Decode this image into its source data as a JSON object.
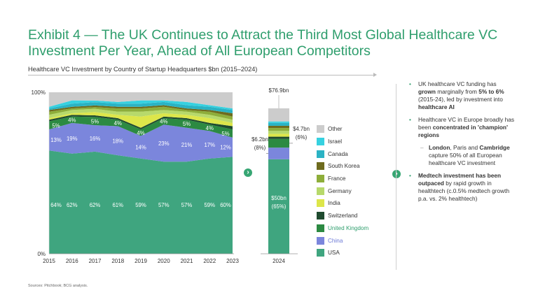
{
  "header": {
    "title_line1": "Exhibit 4 — The UK Continues to Attract the Third Most Global Healthcare VC",
    "title_line2": "Investment Per Year, Ahead of All European Competitors",
    "subtitle": "Healthcare VC Investment by Country of Startup Headquarters $bn (2015–2024)"
  },
  "source": "Sources: Pitchbook; BCG analysis.",
  "chart_data": [
    {
      "type": "area",
      "stacked": true,
      "percent": true,
      "x": [
        "2015",
        "2016",
        "2017",
        "2018",
        "2019",
        "2020",
        "2021",
        "2022",
        "2023"
      ],
      "ylim": [
        0,
        100
      ],
      "y_ticks": [
        "0%",
        "100%"
      ],
      "series": [
        {
          "name": "USA",
          "values": [
            64,
            62,
            62,
            61,
            59,
            57,
            57,
            59,
            60
          ],
          "color": "#3fa57f",
          "label_color": "#ffffff"
        },
        {
          "name": "China",
          "values": [
            13,
            19,
            16,
            18,
            14,
            23,
            21,
            17,
            12
          ],
          "color": "#7b86dc",
          "label_color": "#ffffff"
        },
        {
          "name": "United Kingdom",
          "values": [
            5,
            4,
            5,
            4,
            4,
            4,
            5,
            4,
            5
          ],
          "color": "#2c8a42",
          "label_color": "#ffffff"
        },
        {
          "name": "Switzerland",
          "values": [
            1,
            1,
            1,
            1,
            1,
            1,
            1,
            1,
            2
          ],
          "color": "#1f4b2f"
        },
        {
          "name": "India",
          "values": [
            1,
            1,
            2,
            2,
            7,
            2,
            2,
            3,
            2
          ],
          "color": "#dde64a"
        },
        {
          "name": "Germany",
          "values": [
            2,
            2,
            2,
            2,
            3,
            2,
            2,
            2,
            2
          ],
          "color": "#b7d96b"
        },
        {
          "name": "France",
          "values": [
            2,
            1,
            1,
            2,
            2,
            2,
            1,
            2,
            2
          ],
          "color": "#8eae3a"
        },
        {
          "name": "South Korea",
          "values": [
            1,
            1,
            1,
            1,
            1,
            1,
            1,
            1,
            2
          ],
          "color": "#6e6b1e"
        },
        {
          "name": "Canada",
          "values": [
            1,
            2,
            2,
            2,
            2,
            2,
            2,
            2,
            2
          ],
          "color": "#2bb3c4"
        },
        {
          "name": "Israel",
          "values": [
            1,
            2,
            1,
            1,
            2,
            1,
            2,
            1,
            1
          ],
          "color": "#36d1e0"
        },
        {
          "name": "Other",
          "values": [
            9,
            5,
            5,
            6,
            5,
            5,
            6,
            8,
            10
          ],
          "color": "#cccccc"
        }
      ]
    },
    {
      "type": "bar",
      "stacked": true,
      "categories": [
        "2024"
      ],
      "total_label": "$76.9bn",
      "series": [
        {
          "name": "USA",
          "value": 65,
          "color": "#3fa57f"
        },
        {
          "name": "China",
          "value": 8,
          "color": "#7b86dc"
        },
        {
          "name": "United Kingdom",
          "value": 6,
          "color": "#2c8a42"
        },
        {
          "name": "Switzerland",
          "value": 1.5,
          "color": "#1f4b2f"
        },
        {
          "name": "India",
          "value": 2,
          "color": "#dde64a"
        },
        {
          "name": "Germany",
          "value": 2,
          "color": "#b7d96b"
        },
        {
          "name": "France",
          "value": 2,
          "color": "#8eae3a"
        },
        {
          "name": "South Korea",
          "value": 1.5,
          "color": "#6e6b1e"
        },
        {
          "name": "Canada",
          "value": 2,
          "color": "#2bb3c4"
        },
        {
          "name": "Israel",
          "value": 1,
          "color": "#36d1e0"
        },
        {
          "name": "Other",
          "value": 9,
          "color": "#cccccc"
        }
      ],
      "annotations": {
        "usa_line1": "$50bn",
        "usa_line2": "(65%)",
        "china_line1": "$6.2bn",
        "china_line2": "(8%)",
        "uk_line1": "$4.7bn",
        "uk_line2": "(6%)"
      }
    }
  ],
  "legend": [
    {
      "label": "Other",
      "color": "#cccccc"
    },
    {
      "label": "Israel",
      "color": "#36d1e0"
    },
    {
      "label": "Canada",
      "color": "#2bb3c4"
    },
    {
      "label": "South Korea",
      "color": "#6e6b1e"
    },
    {
      "label": "France",
      "color": "#8eae3a"
    },
    {
      "label": "Germany",
      "color": "#b7d96b"
    },
    {
      "label": "India",
      "color": "#dde64a"
    },
    {
      "label": "Switzerland",
      "color": "#1f4b2f"
    },
    {
      "label": "United Kingdom",
      "color": "#2c8a42",
      "highlight": "uk"
    },
    {
      "label": "China",
      "color": "#7b86dc",
      "highlight": "china"
    },
    {
      "label": "USA",
      "color": "#3fa57f"
    }
  ],
  "commentary": {
    "b1_t1": "UK healthcare VC funding has ",
    "b1_b1": "grown",
    "b1_t2": " marginally from ",
    "b1_b2": "5% to 6%",
    "b1_t3": " (2015-24), led by investment into ",
    "b1_b3": "healthcare AI",
    "b2_t1": "Healthcare VC in Europe broadly has been ",
    "b2_b1": "concentrated in  'champion' regions",
    "b3_b1": "London",
    "b3_t1": ", Paris and ",
    "b3_b2": "Cambridge",
    "b3_t2": " capture 50% of all European healthcare VC investment",
    "b4_b1": "Medtech investment has been outpaced",
    "b4_t1": " by rapid growth in healthtech (c.0.5% medtech growth p.a. vs. 2% healthtech)"
  },
  "icons": {
    "chevron": "chevron-right-icon"
  },
  "chevron_glyph": "›"
}
